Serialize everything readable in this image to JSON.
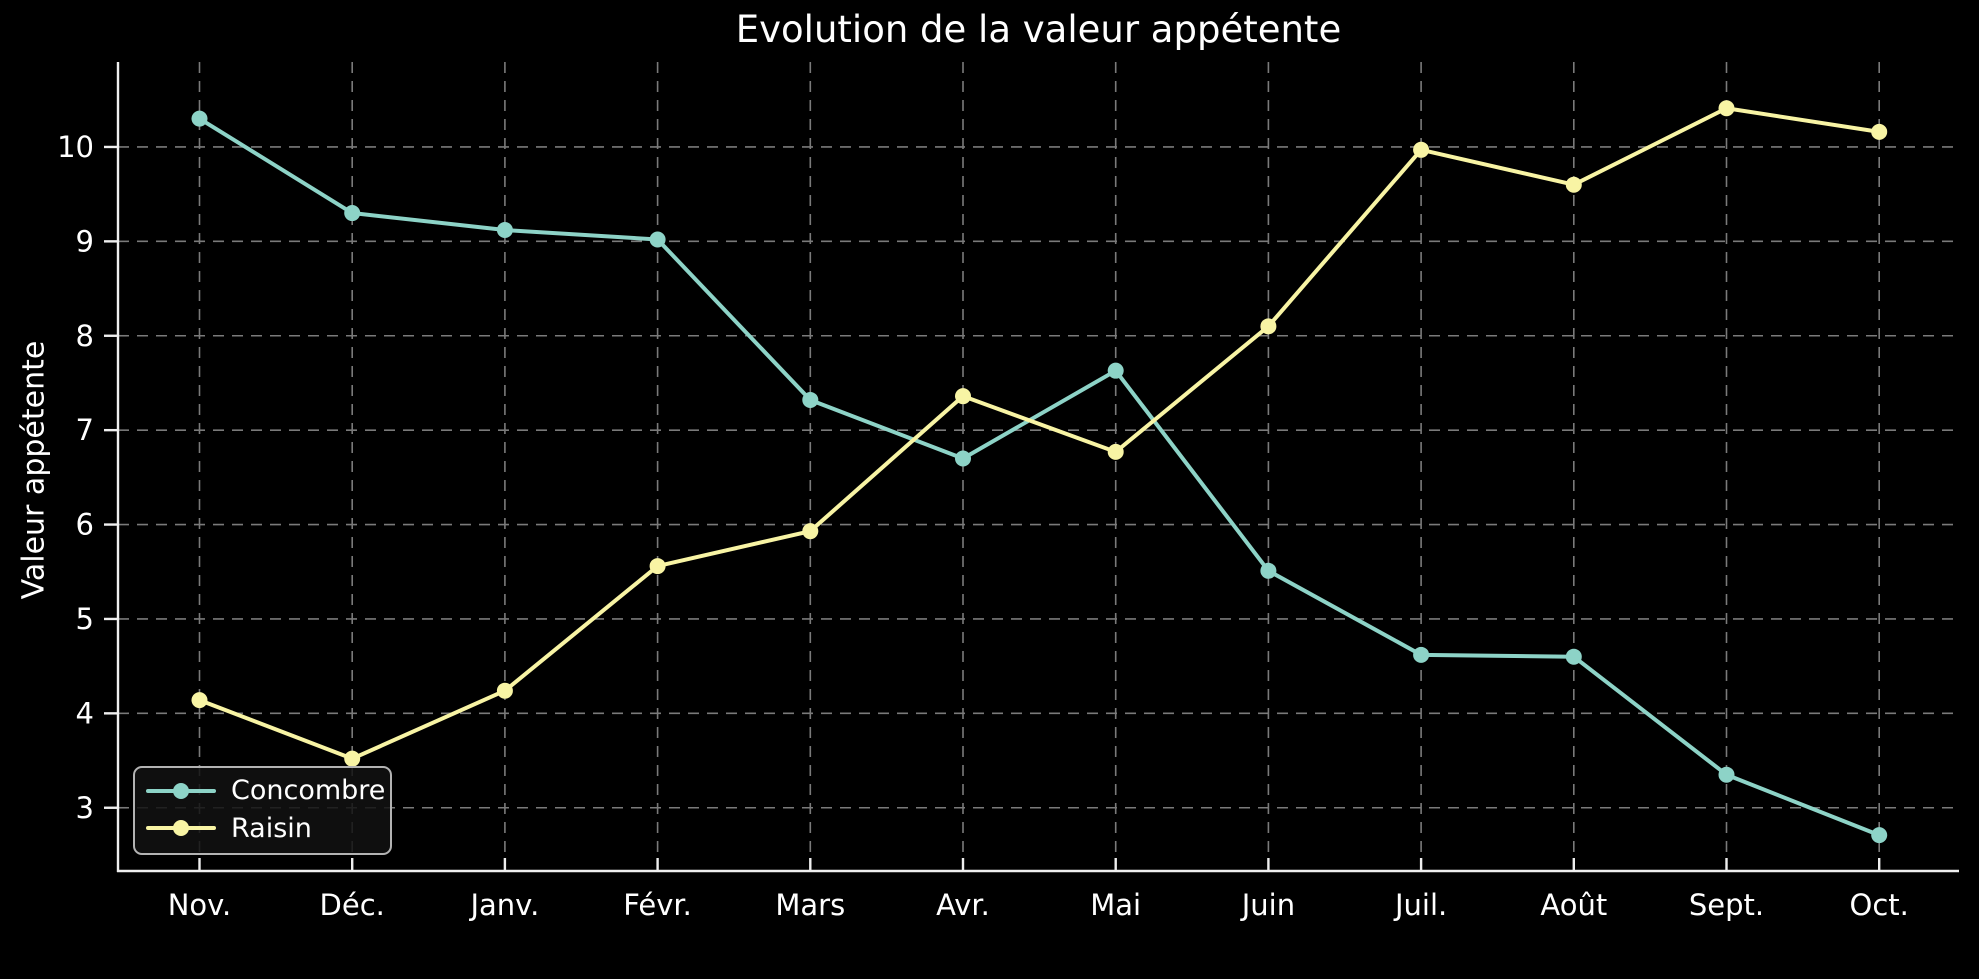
{
  "chart_data": {
    "type": "line",
    "title": "Evolution de la valeur appétente",
    "ylabel": "Valeur appétente",
    "xlabel": "",
    "categories": [
      "Nov.",
      "Déc.",
      "Janv.",
      "Févr.",
      "Mars",
      "Avr.",
      "Mai",
      "Juin",
      "Juil.",
      "Août",
      "Sept.",
      "Oct."
    ],
    "series": [
      {
        "name": "Concombre",
        "color": "#8dd3c7",
        "values": [
          10.3,
          9.3,
          9.12,
          9.02,
          7.32,
          6.7,
          7.63,
          5.51,
          4.62,
          4.6,
          3.35,
          2.71
        ]
      },
      {
        "name": "Raisin",
        "color": "#f8f4a4",
        "values": [
          4.14,
          3.52,
          4.24,
          5.56,
          5.93,
          7.36,
          6.77,
          8.1,
          9.97,
          9.6,
          10.41,
          10.16
        ]
      }
    ],
    "yticks": [
      3,
      4,
      5,
      6,
      7,
      8,
      9,
      10
    ],
    "ylim": [
      2.33,
      10.9
    ],
    "grid": true,
    "grid_style": "dashed",
    "legend_position": "lower left",
    "colors": {
      "background": "#000000",
      "text": "#ffffff",
      "grid": "#7a7a7a",
      "spine": "#efefef",
      "legend_border": "#b3b3b3"
    }
  }
}
